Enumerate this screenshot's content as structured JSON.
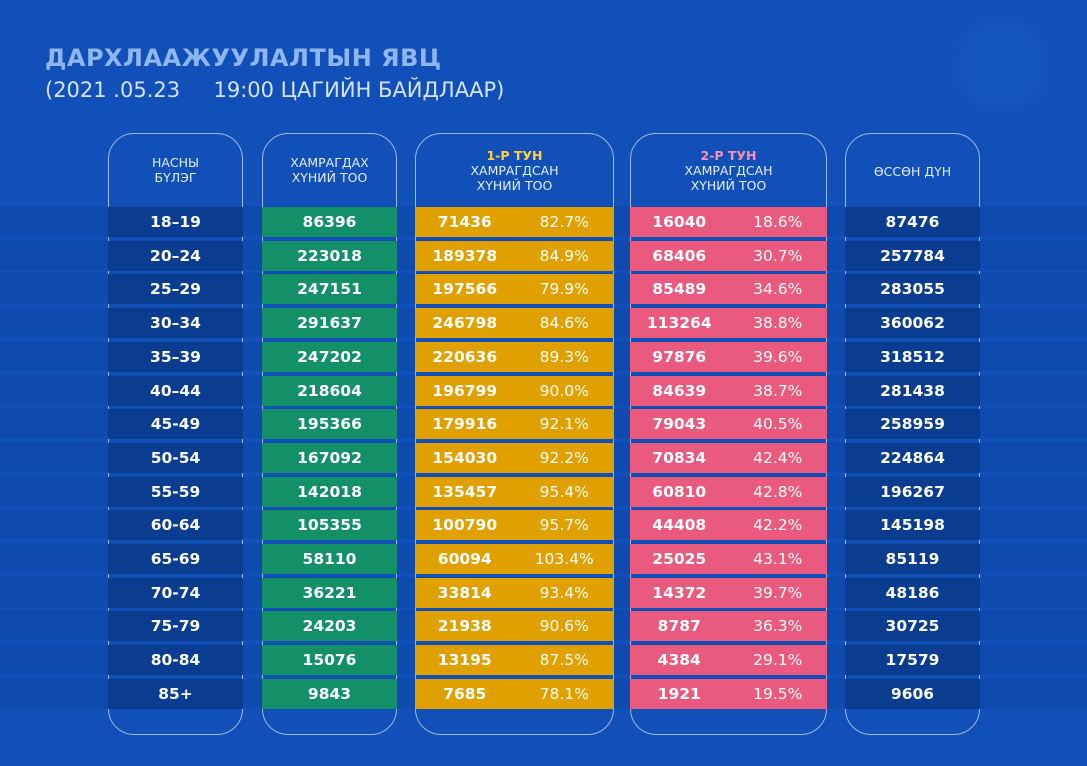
{
  "header": {
    "title": "ДАРХЛААЖУУЛАЛТЫН ЯВЦ",
    "subtitle": "(2021 .05.23     19:00 ЦАГИЙН БАЙДЛААР)"
  },
  "columns": {
    "age": {
      "line1": "НАСНЫ",
      "line2": "БҮЛЭГ"
    },
    "target": {
      "line1": "ХАМРАГДАХ",
      "line2": "ХҮНИЙ ТОО"
    },
    "dose1": {
      "dose": "1-Р ТУН",
      "line1": "ХАМРАГДСАН",
      "line2": "ХҮНИЙ ТОО"
    },
    "dose2": {
      "dose": "2-Р ТУН",
      "line1": "ХАМРАГДСАН",
      "line2": "ХҮНИЙ ТОО"
    },
    "total": {
      "line1": "ӨССӨН ДҮН"
    }
  },
  "colors": {
    "background": "#1150b8",
    "age": "#0a3c8f",
    "target": "#149068",
    "dose1": "#e0a000",
    "dose2": "#ea5a7e",
    "total": "#0a3c8f",
    "dose1_label": "#ffd23a",
    "dose2_label": "#ff8fb4"
  },
  "rows": [
    {
      "age": "18–19",
      "target": "86396",
      "d1": "71436",
      "d1p": "82.7%",
      "d2": "16040",
      "d2p": "18.6%",
      "total": "87476"
    },
    {
      "age": "20–24",
      "target": "223018",
      "d1": "189378",
      "d1p": "84.9%",
      "d2": "68406",
      "d2p": "30.7%",
      "total": "257784"
    },
    {
      "age": "25–29",
      "target": "247151",
      "d1": "197566",
      "d1p": "79.9%",
      "d2": "85489",
      "d2p": "34.6%",
      "total": "283055"
    },
    {
      "age": "30–34",
      "target": "291637",
      "d1": "246798",
      "d1p": "84.6%",
      "d2": "113264",
      "d2p": "38.8%",
      "total": "360062"
    },
    {
      "age": "35–39",
      "target": "247202",
      "d1": "220636",
      "d1p": "89.3%",
      "d2": "97876",
      "d2p": "39.6%",
      "total": "318512"
    },
    {
      "age": "40–44",
      "target": "218604",
      "d1": "196799",
      "d1p": "90.0%",
      "d2": "84639",
      "d2p": "38.7%",
      "total": "281438"
    },
    {
      "age": "45-49",
      "target": "195366",
      "d1": "179916",
      "d1p": "92.1%",
      "d2": "79043",
      "d2p": "40.5%",
      "total": "258959"
    },
    {
      "age": "50-54",
      "target": "167092",
      "d1": "154030",
      "d1p": "92.2%",
      "d2": "70834",
      "d2p": "42.4%",
      "total": "224864"
    },
    {
      "age": "55-59",
      "target": "142018",
      "d1": "135457",
      "d1p": "95.4%",
      "d2": "60810",
      "d2p": "42.8%",
      "total": "196267"
    },
    {
      "age": "60-64",
      "target": "105355",
      "d1": "100790",
      "d1p": "95.7%",
      "d2": "44408",
      "d2p": "42.2%",
      "total": "145198"
    },
    {
      "age": "65-69",
      "target": "58110",
      "d1": "60094",
      "d1p": "103.4%",
      "d2": "25025",
      "d2p": "43.1%",
      "total": "85119"
    },
    {
      "age": "70-74",
      "target": "36221",
      "d1": "33814",
      "d1p": "93.4%",
      "d2": "14372",
      "d2p": "39.7%",
      "total": "48186"
    },
    {
      "age": "75-79",
      "target": "24203",
      "d1": "21938",
      "d1p": "90.6%",
      "d2": "8787",
      "d2p": "36.3%",
      "total": "30725"
    },
    {
      "age": "80-84",
      "target": "15076",
      "d1": "13195",
      "d1p": "87.5%",
      "d2": "4384",
      "d2p": "29.1%",
      "total": "17579"
    },
    {
      "age": "85+",
      "target": "9843",
      "d1": "7685",
      "d1p": "78.1%",
      "d2": "1921",
      "d2p": "19.5%",
      "total": "9606"
    }
  ]
}
